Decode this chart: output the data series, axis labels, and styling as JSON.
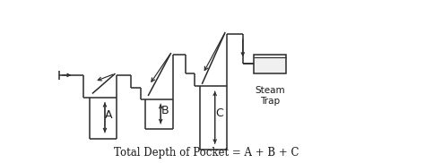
{
  "background_color": "#ffffff",
  "line_color": "#2a2a2a",
  "text_color": "#1a1a1a",
  "title_text": "Total Depth of Pocket = A + B + C",
  "label_A": "A",
  "label_B": "B",
  "label_C": "C",
  "steam_trap_label": "Steam\nTrap",
  "figsize": [
    4.74,
    1.82
  ],
  "dpi": 100,
  "xlim": [
    0,
    10
  ],
  "ylim": [
    0,
    5
  ]
}
